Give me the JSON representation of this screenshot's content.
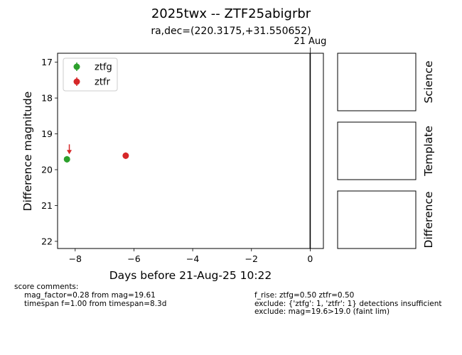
{
  "chart_data": {
    "type": "scatter",
    "title": "2025twx -- ZTF25abigrbr",
    "subtitle": "ra,dec=(220.3175,+31.550652)",
    "xlabel": "Days before 21-Aug-25 10:22",
    "ylabel": "Difference magnitude",
    "xlim": [
      -8.6,
      0.45
    ],
    "ylim": [
      22.2,
      16.75
    ],
    "y_inverted": true,
    "x_ticks": [
      -8,
      -6,
      -4,
      -2,
      0
    ],
    "x_tick_labels": [
      "−8",
      "−6",
      "−4",
      "−2",
      "0"
    ],
    "y_ticks": [
      17,
      18,
      19,
      20,
      21,
      22
    ],
    "y_tick_labels": [
      "17",
      "18",
      "19",
      "20",
      "21",
      "22"
    ],
    "grid": false,
    "legend_position": "top-left",
    "reference_line": {
      "x": 0,
      "label": "21 Aug"
    },
    "series": [
      {
        "name": "ztfg",
        "color": "#2ca02c",
        "points": [
          {
            "x": -8.28,
            "y": 19.71,
            "yerr": 0.09
          }
        ]
      },
      {
        "name": "ztfr",
        "color": "#d62728",
        "points": [
          {
            "x": -6.28,
            "y": 19.61,
            "yerr": 0.09
          }
        ],
        "upper_limits": [
          {
            "x": -8.2,
            "y": 19.55
          }
        ]
      }
    ]
  },
  "stamps": {
    "labels": [
      "Science",
      "Template",
      "Difference"
    ]
  },
  "comments": {
    "header": "score comments:",
    "left": [
      "mag_factor=0.28 from mag=19.61",
      "timespan f=1.00 from timespan=8.3d"
    ],
    "right": [
      "f_rise: ztfg=0.50 ztfr=0.50",
      "exclude: {'ztfg': 1, 'ztfr': 1} detections insufficient",
      "exclude: mag=19.6>19.0 (faint lim)"
    ]
  }
}
